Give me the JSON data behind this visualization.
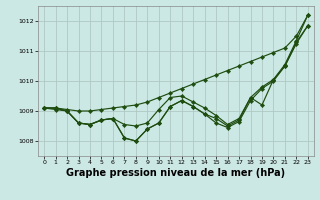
{
  "bg_color": "#cce8e4",
  "grid_color": "#b0c8c4",
  "line_color": "#1e4d10",
  "xlabel": "Graphe pression niveau de la mer (hPa)",
  "xlabel_fontsize": 7,
  "ylim": [
    1007.5,
    1012.5
  ],
  "xlim": [
    -0.5,
    23.5
  ],
  "yticks": [
    1008,
    1009,
    1010,
    1011,
    1012
  ],
  "xticks": [
    0,
    1,
    2,
    3,
    4,
    5,
    6,
    7,
    8,
    9,
    10,
    11,
    12,
    13,
    14,
    15,
    16,
    17,
    18,
    19,
    20,
    21,
    22,
    23
  ],
  "line_straight": [
    1009.1,
    1009.1,
    1009.05,
    1009.0,
    1009.0,
    1009.05,
    1009.1,
    1009.15,
    1009.2,
    1009.3,
    1009.45,
    1009.6,
    1009.75,
    1009.9,
    1010.05,
    1010.2,
    1010.35,
    1010.5,
    1010.65,
    1010.8,
    1010.95,
    1011.1,
    1011.5,
    1012.2
  ],
  "line_mid": [
    1009.1,
    1009.1,
    1009.0,
    1008.6,
    1008.55,
    1008.7,
    1008.75,
    1008.55,
    1008.5,
    1008.6,
    1009.05,
    1009.45,
    1009.5,
    1009.3,
    1009.1,
    1008.85,
    1008.55,
    1008.75,
    1009.45,
    1009.8,
    1010.05,
    1010.55,
    1011.35,
    1012.2
  ],
  "line_volatile1": [
    1009.1,
    1009.1,
    1009.0,
    1008.6,
    1008.55,
    1008.7,
    1008.75,
    1008.1,
    1008.0,
    1008.4,
    1008.6,
    1009.15,
    1009.35,
    1009.15,
    1008.9,
    1008.75,
    1008.5,
    1008.7,
    1009.45,
    1009.2,
    1010.05,
    1010.5,
    1011.3,
    1011.85
  ],
  "line_volatile2": [
    1009.1,
    1009.05,
    1009.0,
    1008.6,
    1008.55,
    1008.7,
    1008.75,
    1008.1,
    1008.0,
    1008.4,
    1008.6,
    1009.15,
    1009.35,
    1009.15,
    1008.9,
    1008.6,
    1008.45,
    1008.65,
    1009.35,
    1009.75,
    1010.0,
    1010.5,
    1011.25,
    1011.85
  ]
}
